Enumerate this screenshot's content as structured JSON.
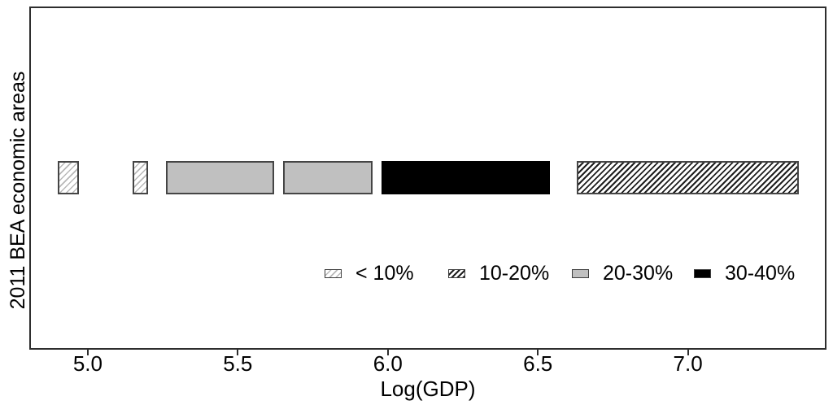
{
  "figure": {
    "background": "#ffffff"
  },
  "chart_data": {
    "type": "bar",
    "subtype": "horizontal-interval-segments",
    "title": "",
    "xlabel": "Log(GDP)",
    "ylabel": "2011 BEA economic areas",
    "x_ticks": [
      "5.0",
      "5.5",
      "6.0",
      "6.5",
      "7.0"
    ],
    "x_tick_values": [
      5.0,
      5.5,
      6.0,
      6.5,
      7.0
    ],
    "xlim": [
      4.805,
      7.462
    ],
    "grid": false,
    "legend_position": "inside-bottom",
    "legend": [
      {
        "label": "< 10%",
        "pattern": "light-hatch",
        "swatch": "white-light-diagonal-hatch"
      },
      {
        "label": "10-20%",
        "pattern": "dense-hatch",
        "swatch": "white-dense-diagonal-hatch"
      },
      {
        "label": "20-30%",
        "pattern": "solid-gray",
        "swatch": "solid-gray"
      },
      {
        "label": "30-40%",
        "pattern": "solid-black",
        "swatch": "solid-black"
      }
    ],
    "segments": [
      {
        "x_start": 4.9,
        "x_end": 4.97,
        "category": "< 10%",
        "pattern": "light-hatch"
      },
      {
        "x_start": 5.15,
        "x_end": 5.2,
        "category": "< 10%",
        "pattern": "light-hatch"
      },
      {
        "x_start": 5.26,
        "x_end": 5.62,
        "category": "20-30%",
        "pattern": "solid-gray"
      },
      {
        "x_start": 5.65,
        "x_end": 5.95,
        "category": "20-30%",
        "pattern": "solid-gray"
      },
      {
        "x_start": 5.98,
        "x_end": 6.54,
        "category": "30-40%",
        "pattern": "solid-black"
      },
      {
        "x_start": 6.63,
        "x_end": 7.37,
        "category": "10-20%",
        "pattern": "dense-hatch"
      }
    ],
    "colors": {
      "gray_fill": "#c0c0c0",
      "black_fill": "#000000",
      "border": "#454545",
      "axis": "#2e2e2e",
      "hatch_light_line": "#b8b8b8",
      "hatch_dark_line": "#1f1f1f",
      "background": "#ffffff",
      "text": "#000000"
    }
  }
}
